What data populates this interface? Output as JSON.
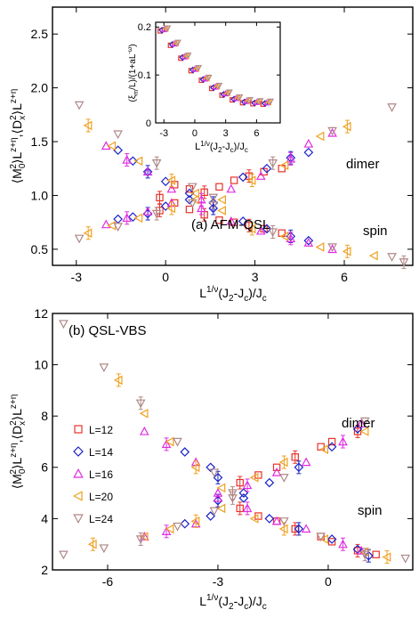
{
  "colors": {
    "L=12": "#e8322a",
    "L=14": "#1a22c8",
    "L=16": "#e02de0",
    "L=20": "#f0a020",
    "L=24": "#b08888"
  },
  "legend": [
    "L=12",
    "L=14",
    "L=16",
    "L=20",
    "L=24"
  ],
  "chart_data": [
    {
      "id": "top",
      "type": "scatter",
      "title": "(a) AFM-QSL",
      "xlabel": "L^{1/ν}(J_2-J_c)/J_c",
      "ylabel": "⟨M_0^2⟩L^{z+η},⟨D_x^2⟩L^{z+η}",
      "xlim": [
        -3.8,
        8.3
      ],
      "ylim": [
        0.35,
        2.75
      ],
      "xticks": [
        -3,
        0,
        3,
        6
      ],
      "yticks": [
        0.5,
        1.0,
        1.5,
        2.0,
        2.5
      ],
      "annotations": [
        "dimer",
        "spin"
      ],
      "series": [
        {
          "name": "L=12",
          "dimer": [
            [
              -0.2,
              0.98
            ],
            [
              0.3,
              1.1
            ],
            [
              0.8,
              1.06
            ],
            [
              1.3,
              1.03
            ],
            [
              1.8,
              1.08
            ],
            [
              2.3,
              1.14
            ],
            [
              2.8,
              1.18
            ],
            [
              3.3,
              1.22
            ],
            [
              3.9,
              1.25
            ]
          ],
          "spin": [
            [
              -0.2,
              0.86
            ],
            [
              0.3,
              0.93
            ],
            [
              0.8,
              0.87
            ],
            [
              1.3,
              0.82
            ],
            [
              1.8,
              0.77
            ],
            [
              2.3,
              0.75
            ],
            [
              2.8,
              0.72
            ],
            [
              3.3,
              0.69
            ],
            [
              3.9,
              0.65
            ]
          ]
        },
        {
          "name": "L=14",
          "dimer": [
            [
              -1.6,
              1.42
            ],
            [
              -1.1,
              1.32
            ],
            [
              -0.6,
              1.22
            ],
            [
              0,
              1.13
            ],
            [
              0.8,
              1.02
            ],
            [
              1.6,
              0.93
            ],
            [
              2.6,
              1.17
            ],
            [
              3.4,
              1.25
            ],
            [
              4.2,
              1.35
            ],
            [
              4.8,
              1.4
            ]
          ],
          "spin": [
            [
              -1.6,
              0.78
            ],
            [
              -1.1,
              0.8
            ],
            [
              -0.6,
              0.83
            ],
            [
              0,
              0.9
            ],
            [
              0.8,
              0.96
            ],
            [
              1.6,
              0.88
            ],
            [
              2.6,
              0.76
            ],
            [
              3.4,
              0.69
            ],
            [
              4.2,
              0.62
            ],
            [
              4.8,
              0.58
            ]
          ]
        },
        {
          "name": "L=16",
          "dimer": [
            [
              -2.0,
              1.46
            ],
            [
              -1.3,
              1.33
            ],
            [
              -0.6,
              1.22
            ],
            [
              0.2,
              1.06
            ],
            [
              1.2,
              0.96
            ],
            [
              2.2,
              1.06
            ],
            [
              3.2,
              1.18
            ],
            [
              4.2,
              1.34
            ],
            [
              4.8,
              1.48
            ],
            [
              5.6,
              1.58
            ]
          ],
          "spin": [
            [
              -2.0,
              0.73
            ],
            [
              -1.3,
              0.79
            ],
            [
              -0.6,
              0.85
            ],
            [
              0.2,
              0.93
            ],
            [
              1.2,
              0.88
            ],
            [
              2.2,
              0.76
            ],
            [
              3.2,
              0.67
            ],
            [
              4.2,
              0.6
            ],
            [
              4.8,
              0.56
            ],
            [
              5.6,
              0.5
            ]
          ]
        },
        {
          "name": "L=20",
          "dimer": [
            [
              -2.6,
              1.65
            ],
            [
              -1.8,
              1.46
            ],
            [
              -0.9,
              1.32
            ],
            [
              0.2,
              1.14
            ],
            [
              1.0,
              1.02
            ],
            [
              1.9,
              0.96
            ],
            [
              2.9,
              1.14
            ],
            [
              4.0,
              1.28
            ],
            [
              5.2,
              1.55
            ],
            [
              6.1,
              1.64
            ]
          ],
          "spin": [
            [
              -2.6,
              0.65
            ],
            [
              -1.8,
              0.72
            ],
            [
              -0.9,
              0.79
            ],
            [
              0.2,
              0.88
            ],
            [
              1.0,
              0.96
            ],
            [
              1.9,
              0.86
            ],
            [
              2.9,
              0.69
            ],
            [
              4.0,
              0.62
            ],
            [
              5.2,
              0.52
            ],
            [
              6.1,
              0.48
            ],
            [
              7.0,
              0.44
            ]
          ]
        },
        {
          "name": "L=24",
          "dimer": [
            [
              -2.9,
              1.84
            ],
            [
              -1.6,
              1.57
            ],
            [
              -0.3,
              1.3
            ],
            [
              0.9,
              1.08
            ],
            [
              1.6,
              0.98
            ],
            [
              3.6,
              1.3
            ],
            [
              5.6,
              1.6
            ],
            [
              7.6,
              1.82
            ]
          ],
          "spin": [
            [
              -2.9,
              0.6
            ],
            [
              -1.6,
              0.71
            ],
            [
              -0.3,
              0.83
            ],
            [
              0.9,
              0.93
            ],
            [
              1.6,
              0.91
            ],
            [
              3.6,
              0.66
            ],
            [
              5.6,
              0.52
            ],
            [
              7.6,
              0.43
            ],
            [
              8.0,
              0.38
            ]
          ]
        }
      ]
    },
    {
      "id": "inset",
      "type": "scatter",
      "xlabel": "L^{1/ν}(J_2-J_c)/J_c",
      "ylabel": "(ξ_m/L)/(1+aL^{-ω})",
      "xlim": [
        -3.8,
        8.3
      ],
      "ylim": [
        0,
        0.21
      ],
      "xticks": [
        -3,
        0,
        3,
        6
      ],
      "yticks": [
        0,
        0.1,
        0.2
      ],
      "curve": [
        [
          -3.0,
          0.195
        ],
        [
          -2.0,
          0.165
        ],
        [
          -1.0,
          0.138
        ],
        [
          0,
          0.112
        ],
        [
          1.0,
          0.092
        ],
        [
          2.0,
          0.075
        ],
        [
          3.0,
          0.061
        ],
        [
          4.0,
          0.051
        ],
        [
          5.0,
          0.045
        ],
        [
          6.0,
          0.043
        ],
        [
          7.0,
          0.042
        ]
      ]
    },
    {
      "id": "bottom",
      "type": "scatter",
      "title": "(b) QSL-VBS",
      "xlabel": "L^{1/ν}(J_2-J_c)/J_c",
      "ylabel": "⟨M_0^2⟩L^{z+η},⟨D_x^2⟩L^{z+η}",
      "xlim": [
        -7.5,
        2.3
      ],
      "ylim": [
        2,
        12
      ],
      "xticks": [
        -6,
        -3,
        0
      ],
      "yticks": [
        2,
        4,
        6,
        8,
        10,
        12
      ],
      "annotations": [
        "dimer",
        "spin"
      ],
      "legend_position": "left",
      "series": [
        {
          "name": "L=12",
          "dimer": [
            [
              -2.4,
              5.4
            ],
            [
              -1.9,
              5.7
            ],
            [
              -1.4,
              6.0
            ],
            [
              -0.9,
              6.4
            ],
            [
              -0.2,
              6.8
            ],
            [
              0.1,
              7.0
            ],
            [
              0.8,
              7.4
            ]
          ],
          "spin": [
            [
              -2.4,
              4.4
            ],
            [
              -1.9,
              4.1
            ],
            [
              -1.4,
              3.9
            ],
            [
              -0.9,
              3.6
            ],
            [
              -0.2,
              3.3
            ],
            [
              0.1,
              3.1
            ],
            [
              0.8,
              2.75
            ],
            [
              1.3,
              2.6
            ]
          ]
        },
        {
          "name": "L=14",
          "dimer": [
            [
              -3.9,
              6.6
            ],
            [
              -3.2,
              6.0
            ],
            [
              -3.0,
              4.7
            ],
            [
              -2.3,
              5.0
            ],
            [
              -1.6,
              5.4
            ],
            [
              -0.8,
              6.0
            ],
            [
              0.1,
              6.8
            ],
            [
              0.8,
              7.5
            ]
          ],
          "spin": [
            [
              -3.9,
              3.8
            ],
            [
              -3.2,
              4.1
            ],
            [
              -3.0,
              5.6
            ],
            [
              -2.3,
              4.8
            ],
            [
              -1.6,
              4.0
            ],
            [
              -0.8,
              3.6
            ],
            [
              0.1,
              3.2
            ],
            [
              0.8,
              2.8
            ],
            [
              1.1,
              2.55
            ]
          ]
        },
        {
          "name": "L=16",
          "dimer": [
            [
              -5.0,
              7.4
            ],
            [
              -4.4,
              6.9
            ],
            [
              -3.6,
              6.2
            ],
            [
              -3.0,
              5.0
            ],
            [
              -2.2,
              5.3
            ],
            [
              -1.4,
              5.8
            ],
            [
              -0.6,
              6.2
            ],
            [
              0.4,
              7.0
            ],
            [
              0.9,
              7.7
            ]
          ],
          "spin": [
            [
              -5.0,
              3.3
            ],
            [
              -4.4,
              3.5
            ],
            [
              -3.6,
              3.8
            ],
            [
              -3.0,
              4.8
            ],
            [
              -2.2,
              4.4
            ],
            [
              -1.4,
              3.9
            ],
            [
              -0.6,
              3.6
            ],
            [
              0.4,
              3.0
            ],
            [
              0.9,
              2.75
            ]
          ]
        },
        {
          "name": "L=20",
          "dimer": [
            [
              -5.7,
              9.4
            ],
            [
              -5.0,
              8.1
            ],
            [
              -4.3,
              7.0
            ],
            [
              -3.6,
              6.0
            ],
            [
              -2.9,
              5.2
            ],
            [
              -2.0,
              5.6
            ],
            [
              -1.2,
              6.2
            ],
            [
              -0.1,
              6.7
            ],
            [
              1.0,
              7.4
            ]
          ],
          "spin": [
            [
              -6.4,
              3.0
            ],
            [
              -5.0,
              3.3
            ],
            [
              -4.3,
              3.6
            ],
            [
              -3.6,
              3.9
            ],
            [
              -2.9,
              4.4
            ],
            [
              -2.0,
              4.0
            ],
            [
              -1.2,
              3.6
            ],
            [
              -0.1,
              3.2
            ],
            [
              1.0,
              2.7
            ],
            [
              1.6,
              2.5
            ]
          ]
        },
        {
          "name": "L=24",
          "dimer": [
            [
              -7.2,
              11.6
            ],
            [
              -6.1,
              9.9
            ],
            [
              -5.1,
              8.5
            ],
            [
              -4.1,
              7.0
            ],
            [
              -3.1,
              5.8
            ],
            [
              -2.6,
              5.0
            ],
            [
              -1.2,
              5.6
            ],
            [
              1.0,
              7.8
            ]
          ],
          "spin": [
            [
              -7.2,
              2.6
            ],
            [
              -6.1,
              2.85
            ],
            [
              -5.1,
              3.2
            ],
            [
              -4.1,
              3.7
            ],
            [
              -3.1,
              4.3
            ],
            [
              -2.6,
              4.8
            ],
            [
              -1.2,
              3.9
            ],
            [
              -0.2,
              3.3
            ],
            [
              1.0,
              2.6
            ],
            [
              2.1,
              2.45
            ]
          ]
        }
      ]
    }
  ]
}
